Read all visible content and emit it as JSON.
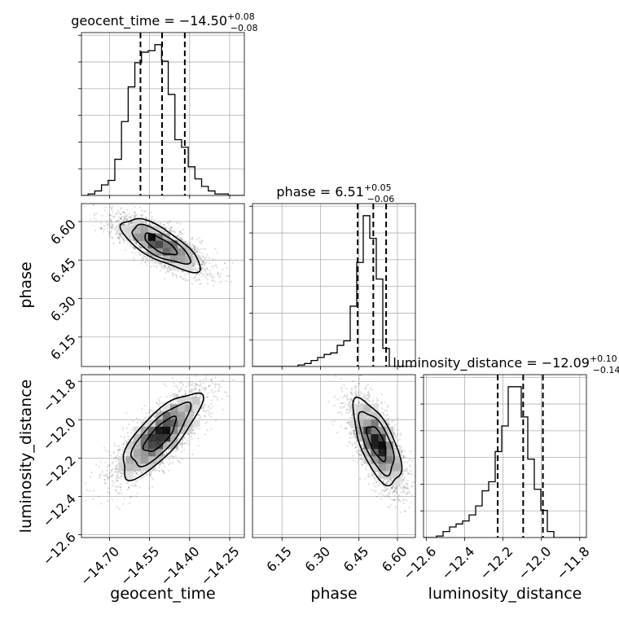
{
  "chart_data": {
    "type": "corner",
    "parameters": [
      "geocent_time",
      "phase",
      "luminosity_distance"
    ],
    "axis_labels": [
      "geocent_time",
      "phase",
      "luminosity_distance"
    ],
    "ranges": [
      [
        -14.805,
        -14.195
      ],
      [
        6.035,
        6.67
      ],
      [
        -12.615,
        -11.765
      ]
    ],
    "ticks": [
      [
        -14.7,
        -14.55,
        -14.4,
        -14.25
      ],
      [
        6.15,
        6.3,
        6.45,
        6.6
      ],
      [
        -12.6,
        -12.4,
        -12.2,
        -12.0,
        -11.8
      ]
    ],
    "tick_labels": [
      [
        "−14.70",
        "−14.55",
        "−14.40",
        "−14.25"
      ],
      [
        "6.15",
        "6.30",
        "6.45",
        "6.60"
      ],
      [
        "−12.6",
        "−12.4",
        "−12.2",
        "−12.0",
        "−11.8"
      ]
    ],
    "corr_ticks": [
      -11.8,
      -12.0,
      -12.2,
      -12.4,
      -12.6
    ],
    "corr_tick_labels": [
      "−11.8",
      "−12.0",
      "−12.2",
      "−12.4",
      "−12.6"
    ],
    "titles": [
      {
        "name": "geocent_time",
        "median": "−14.50",
        "plus": "+0.08",
        "minus": "−0.08"
      },
      {
        "name": "phase",
        "median": "6.51",
        "plus": "+0.05",
        "minus": "−0.06"
      },
      {
        "name": "luminosity_distance",
        "median": "−12.09",
        "plus": "+0.10",
        "minus": "−0.14"
      }
    ],
    "quantiles": [
      [
        -14.584,
        -14.503,
        -14.418
      ],
      [
        6.445,
        6.506,
        6.556
      ],
      [
        -12.228,
        -12.095,
        -11.992
      ]
    ],
    "histograms": [
      {
        "bin_start": -14.805,
        "bin_width": 0.025,
        "counts": [
          0,
          1,
          3,
          7,
          10,
          24,
          49,
          72,
          88,
          95,
          96,
          100,
          89,
          67,
          37,
          32,
          19,
          11,
          6,
          3,
          1,
          1,
          0,
          0,
          0
        ]
      },
      {
        "bin_start": 6.035,
        "bin_width": 0.0254,
        "counts": [
          0,
          0,
          0,
          0,
          0,
          0,
          0,
          1,
          2,
          4,
          6,
          8,
          9,
          14,
          17,
          40,
          69,
          100,
          85,
          58,
          12,
          0,
          0,
          0,
          0
        ]
      },
      {
        "bin_start": -12.615,
        "bin_width": 0.034,
        "counts": [
          0,
          0,
          1,
          4,
          7,
          9,
          11,
          15,
          21,
          31,
          37,
          57,
          74,
          100,
          100,
          80,
          52,
          32,
          18,
          4,
          0,
          0,
          0,
          0,
          0
        ]
      }
    ],
    "pairs": [
      {
        "x": "geocent_time",
        "y": "phase",
        "mean": [
          -14.51,
          6.51
        ],
        "sd": [
          0.08,
          0.055
        ],
        "rho": -0.75
      },
      {
        "x": "geocent_time",
        "y": "luminosity_distance",
        "mean": [
          -14.51,
          -12.08
        ],
        "sd": [
          0.08,
          0.12
        ],
        "rho": 0.78
      },
      {
        "x": "phase",
        "y": "luminosity_distance",
        "mean": [
          6.52,
          -12.12
        ],
        "sd": [
          0.05,
          0.12
        ],
        "rho": -0.65
      }
    ],
    "grid": true,
    "level_color": "#000000",
    "hist_color": "#000000"
  }
}
